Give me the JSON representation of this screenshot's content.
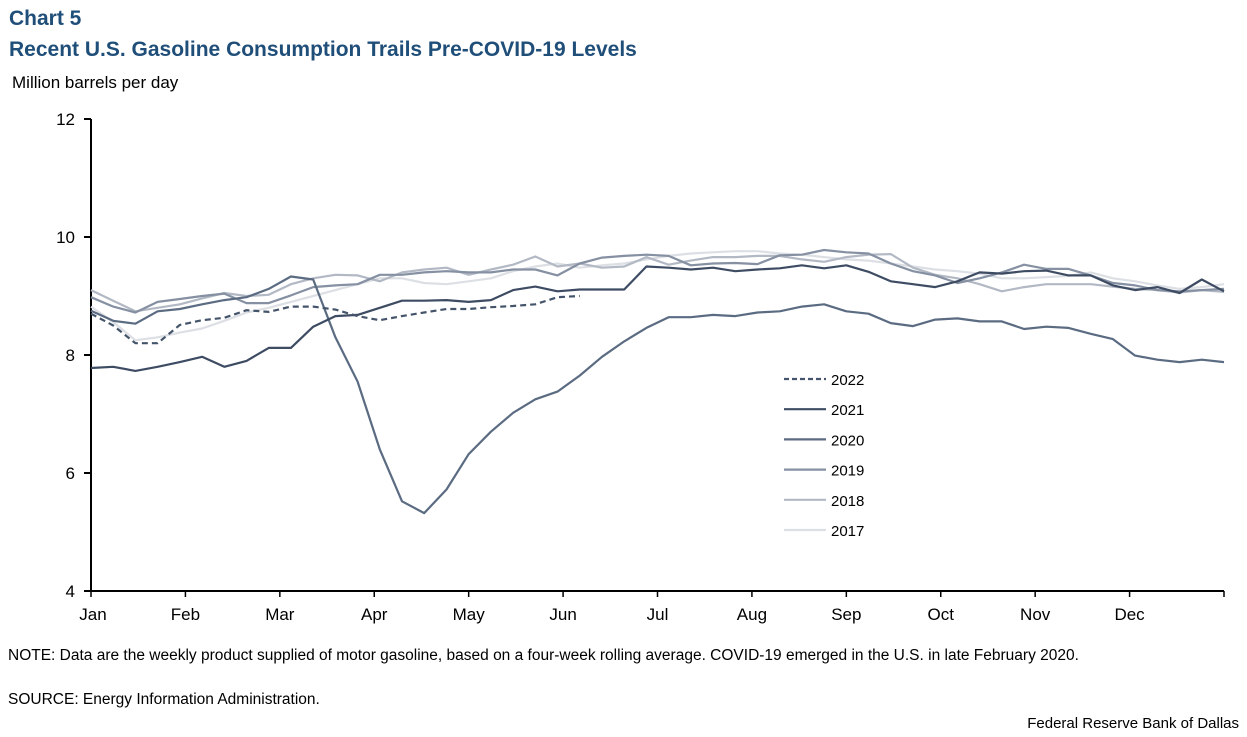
{
  "header": {
    "chart_number": "Chart 5",
    "title": "Recent U.S. Gasoline Consumption Trails Pre-COVID-19 Levels",
    "y_unit": "Million barrels per day"
  },
  "footer": {
    "note": "NOTE: Data are the weekly product supplied of motor gasoline, based on a four-week rolling average. COVID-19 emerged in the U.S. in late February 2020.",
    "source": "SOURCE: Energy Information Administration.",
    "credit": "Federal Reserve Bank of Dallas"
  },
  "chart_data": {
    "type": "line",
    "title": "Recent U.S. Gasoline Consumption Trails Pre-COVID-19 Levels",
    "xlabel": "",
    "ylabel": "Million barrels per day",
    "ylim": [
      4,
      12
    ],
    "yticks": [
      4,
      6,
      8,
      10,
      12
    ],
    "xlim_weeks": [
      0,
      52
    ],
    "x_tick_labels": [
      "Jan",
      "Feb",
      "Mar",
      "Apr",
      "May",
      "Jun",
      "Jul",
      "Aug",
      "Sep",
      "Oct",
      "Nov",
      "Dec"
    ],
    "x_frequency": "weekly",
    "grid": false,
    "legend_position": "center-right",
    "series": [
      {
        "name": "2022",
        "color": "#44546a",
        "dash": true,
        "values": [
          8.7,
          8.5,
          8.2,
          8.2,
          8.51,
          8.59,
          8.63,
          8.76,
          8.73,
          8.82,
          8.82,
          8.77,
          8.66,
          8.59,
          8.66,
          8.72,
          8.78,
          8.78,
          8.81,
          8.83,
          8.86,
          8.98,
          9.0
        ]
      },
      {
        "name": "2021",
        "color": "#3e4c63",
        "dash": false,
        "values": [
          7.78,
          7.8,
          7.73,
          7.8,
          7.88,
          7.97,
          7.8,
          7.9,
          8.12,
          8.12,
          8.48,
          8.66,
          8.68,
          8.8,
          8.92,
          8.92,
          8.93,
          8.9,
          8.93,
          9.1,
          9.16,
          9.08,
          9.11,
          9.11,
          9.11,
          9.5,
          9.48,
          9.45,
          9.48,
          9.42,
          9.45,
          9.47,
          9.52,
          9.47,
          9.52,
          9.41,
          9.25,
          9.2,
          9.15,
          9.25,
          9.4,
          9.38,
          9.42,
          9.43,
          9.35,
          9.35,
          9.18,
          9.1,
          9.15,
          9.05,
          9.28,
          9.08
        ]
      },
      {
        "name": "2020",
        "color": "#5b6b82",
        "dash": false,
        "values": [
          8.75,
          8.58,
          8.53,
          8.74,
          8.78,
          8.86,
          8.93,
          8.98,
          9.12,
          9.33,
          9.28,
          8.3,
          7.55,
          6.4,
          5.52,
          5.32,
          5.72,
          6.32,
          6.7,
          7.02,
          7.25,
          7.38,
          7.65,
          7.97,
          8.23,
          8.46,
          8.64,
          8.64,
          8.68,
          8.66,
          8.72,
          8.74,
          8.82,
          8.86,
          8.74,
          8.7,
          8.54,
          8.49,
          8.6,
          8.62,
          8.57,
          8.57,
          8.44,
          8.48,
          8.46,
          8.36,
          8.27,
          7.99,
          7.92,
          7.88,
          7.92,
          7.88
        ]
      },
      {
        "name": "2019",
        "color": "#8590a2",
        "dash": false,
        "values": [
          8.98,
          8.82,
          8.72,
          8.9,
          8.95,
          9.0,
          9.04,
          8.88,
          8.88,
          9.01,
          9.15,
          9.18,
          9.2,
          9.36,
          9.36,
          9.4,
          9.42,
          9.4,
          9.4,
          9.45,
          9.45,
          9.35,
          9.55,
          9.65,
          9.68,
          9.7,
          9.68,
          9.52,
          9.55,
          9.56,
          9.54,
          9.69,
          9.7,
          9.78,
          9.74,
          9.72,
          9.55,
          9.42,
          9.35,
          9.22,
          9.3,
          9.4,
          9.53,
          9.46,
          9.46,
          9.35,
          9.22,
          9.18,
          9.1,
          9.08,
          9.1,
          9.12
        ]
      },
      {
        "name": "2018",
        "color": "#b3b9c4",
        "dash": false,
        "values": [
          9.1,
          8.92,
          8.74,
          8.8,
          8.86,
          8.96,
          9.05,
          9.0,
          9.02,
          9.2,
          9.3,
          9.36,
          9.35,
          9.25,
          9.4,
          9.45,
          9.48,
          9.36,
          9.45,
          9.53,
          9.67,
          9.5,
          9.55,
          9.48,
          9.5,
          9.66,
          9.53,
          9.6,
          9.66,
          9.66,
          9.68,
          9.68,
          9.62,
          9.58,
          9.66,
          9.7,
          9.71,
          9.48,
          9.36,
          9.3,
          9.2,
          9.08,
          9.15,
          9.2,
          9.2,
          9.2,
          9.16,
          9.12,
          9.1,
          9.06,
          9.1,
          9.07
        ]
      },
      {
        "name": "2017",
        "color": "#dcdfe4",
        "dash": false,
        "values": [
          8.82,
          8.56,
          8.25,
          8.3,
          8.38,
          8.45,
          8.58,
          8.72,
          8.8,
          8.9,
          9.0,
          9.1,
          9.2,
          9.3,
          9.3,
          9.22,
          9.2,
          9.25,
          9.3,
          9.42,
          9.5,
          9.55,
          9.48,
          9.52,
          9.55,
          9.62,
          9.68,
          9.72,
          9.74,
          9.76,
          9.76,
          9.72,
          9.7,
          9.66,
          9.62,
          9.6,
          9.55,
          9.5,
          9.45,
          9.42,
          9.38,
          9.3,
          9.3,
          9.32,
          9.34,
          9.4,
          9.3,
          9.25,
          9.18,
          9.12,
          9.15,
          9.2
        ]
      }
    ]
  }
}
